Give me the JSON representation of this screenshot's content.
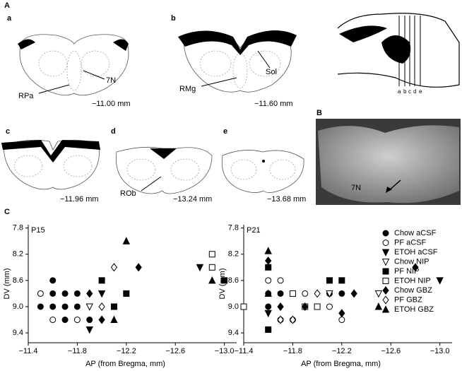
{
  "figure": {
    "panel_a": "A",
    "panel_b": "B",
    "panel_c": "C",
    "sections": [
      {
        "letter": "a",
        "level": "−11.00 mm",
        "labels": [
          "RPa",
          "7N"
        ]
      },
      {
        "letter": "b",
        "level": "−11.60 mm",
        "labels": [
          "RMg",
          "Sol"
        ]
      },
      {
        "letter": "c",
        "level": "−11.96 mm",
        "labels": []
      },
      {
        "letter": "d",
        "level": "−13.24 mm",
        "labels": [
          "ROb"
        ]
      },
      {
        "letter": "e",
        "level": "−13.68 mm",
        "labels": []
      }
    ],
    "sagittal_cuts": [
      "a",
      "b",
      "c",
      "d",
      "e"
    ],
    "photo_label": "7N"
  },
  "chart_data": [
    {
      "type": "scatter",
      "title": "P15",
      "x_label": "AP (from Bregma, mm)",
      "y_label": "DV (mm)",
      "xlim": [
        -11.4,
        -13.1
      ],
      "ylim": [
        9.55,
        7.75
      ],
      "xticks": [
        {
          "value": -11.4,
          "label": "−11.4"
        },
        {
          "value": -11.8,
          "label": "−11.8"
        },
        {
          "value": -12.2,
          "label": "−12.2"
        },
        {
          "value": -12.6,
          "label": "−12.6"
        },
        {
          "value": -13.0,
          "label": "−13.0"
        }
      ],
      "yticks": [
        7.8,
        8.2,
        8.6,
        {
          "value": 9.0,
          "label": "9.0"
        },
        9.4
      ],
      "series": [
        {
          "marker": "circle",
          "filled": true,
          "color": "#000000",
          "x": [
            -11.5,
            -11.6,
            -11.6,
            -11.6,
            -11.7,
            -11.7,
            -11.7,
            -11.8,
            -11.8,
            -11.9
          ],
          "values": [
            9.0,
            8.6,
            8.8,
            9.0,
            8.8,
            9.0,
            9.2,
            8.8,
            9.0,
            9.2
          ]
        },
        {
          "marker": "circle",
          "filled": false,
          "color": "#000000",
          "x": [
            -11.5,
            -11.6,
            -11.8
          ],
          "values": [
            8.8,
            9.2,
            9.2
          ]
        },
        {
          "marker": "triangle-down",
          "filled": true,
          "color": "#000000",
          "x": [
            -11.9,
            -12.0,
            -12.8
          ],
          "values": [
            9.35,
            8.8,
            8.4
          ]
        },
        {
          "marker": "triangle-down",
          "filled": false,
          "color": "#000000",
          "x": [
            -11.9
          ],
          "values": [
            9.0
          ]
        },
        {
          "marker": "square",
          "filled": true,
          "color": "#000000",
          "x": [
            -12.0,
            -12.2,
            -12.1,
            -13.0
          ],
          "values": [
            8.6,
            8.8,
            9.0,
            8.6
          ]
        },
        {
          "marker": "square",
          "filled": false,
          "color": "#000000",
          "x": [
            -12.9,
            -12.9
          ],
          "values": [
            8.2,
            8.4
          ]
        },
        {
          "marker": "diamond",
          "filled": true,
          "color": "#000000",
          "x": [
            -11.9,
            -12.0,
            -12.3
          ],
          "values": [
            8.8,
            9.2,
            8.4
          ]
        },
        {
          "marker": "diamond",
          "filled": false,
          "color": "#000000",
          "x": [
            -12.0,
            -12.1
          ],
          "values": [
            9.0,
            8.4
          ]
        },
        {
          "marker": "triangle-up",
          "filled": true,
          "color": "#000000",
          "x": [
            -12.2,
            -12.1,
            -12.9
          ],
          "values": [
            8.0,
            9.2,
            8.6
          ]
        }
      ]
    },
    {
      "type": "scatter",
      "title": "P21",
      "x_label": "AP (from Bregma, mm)",
      "y_label": "DV (mm)",
      "xlim": [
        -11.4,
        -13.1
      ],
      "ylim": [
        9.55,
        7.75
      ],
      "xticks": [
        {
          "value": -11.4,
          "label": "−11.4"
        },
        {
          "value": -11.8,
          "label": "−11.8"
        },
        {
          "value": -12.2,
          "label": "−12.2"
        },
        {
          "value": -12.6,
          "label": "−12.6"
        },
        {
          "value": -13.0,
          "label": "−13.0"
        }
      ],
      "yticks": [
        7.8,
        8.2,
        8.6,
        {
          "value": 9.0,
          "label": "9.0"
        },
        9.4
      ],
      "series": [
        {
          "name": "Chow aCSF",
          "marker": "circle",
          "filled": true,
          "color": "#000000",
          "x": [
            -11.6,
            -11.7,
            -11.6,
            -12.1,
            -12.2,
            -11.7
          ],
          "values": [
            8.8,
            8.8,
            9.0,
            8.8,
            8.8,
            9.2
          ]
        },
        {
          "name": "PF aCSF",
          "marker": "circle",
          "filled": false,
          "color": "#000000",
          "x": [
            -11.6,
            -11.7,
            -11.9,
            -12.1,
            -12.2,
            -11.8
          ],
          "values": [
            8.6,
            8.6,
            8.8,
            9.0,
            9.2,
            9.2
          ]
        },
        {
          "name": "ETOH aCSF",
          "marker": "triangle-down",
          "filled": true,
          "color": "#000000",
          "x": [
            -13.0,
            -11.6
          ],
          "values": [
            8.6,
            9.1
          ]
        },
        {
          "name": "Chow NIP",
          "marker": "triangle-down",
          "filled": false,
          "color": "#000000",
          "x": [
            -12.5,
            -12.1
          ],
          "values": [
            8.8,
            8.8
          ]
        },
        {
          "name": "PF NIP",
          "marker": "square",
          "filled": true,
          "color": "#000000",
          "x": [
            -11.6,
            -12.1,
            -12.2,
            -11.6
          ],
          "values": [
            9.35,
            8.6,
            8.6,
            8.4
          ]
        },
        {
          "name": "ETOH NIP",
          "marker": "square",
          "filled": false,
          "color": "#000000",
          "x": [
            -11.4,
            -11.8,
            -11.9,
            -12.0
          ],
          "values": [
            9.0,
            8.8,
            9.0,
            9.0
          ]
        },
        {
          "name": "Chow GBZ",
          "marker": "diamond",
          "filled": true,
          "color": "#000000",
          "x": [
            -11.6,
            -11.7,
            -11.9,
            -12.2,
            -12.8,
            -12.3
          ],
          "values": [
            8.3,
            9.0,
            9.0,
            9.1,
            8.4,
            8.8
          ]
        },
        {
          "name": "PF GBZ",
          "marker": "diamond",
          "filled": false,
          "color": "#000000",
          "x": [
            -11.7,
            -11.8,
            -12.0
          ],
          "values": [
            9.2,
            9.2,
            8.8
          ]
        },
        {
          "name": "ETOH GBZ",
          "marker": "triangle-up",
          "filled": true,
          "color": "#000000",
          "x": [
            -11.6,
            -11.6,
            -12.5
          ],
          "values": [
            8.15,
            8.8,
            9.0
          ]
        }
      ]
    }
  ]
}
